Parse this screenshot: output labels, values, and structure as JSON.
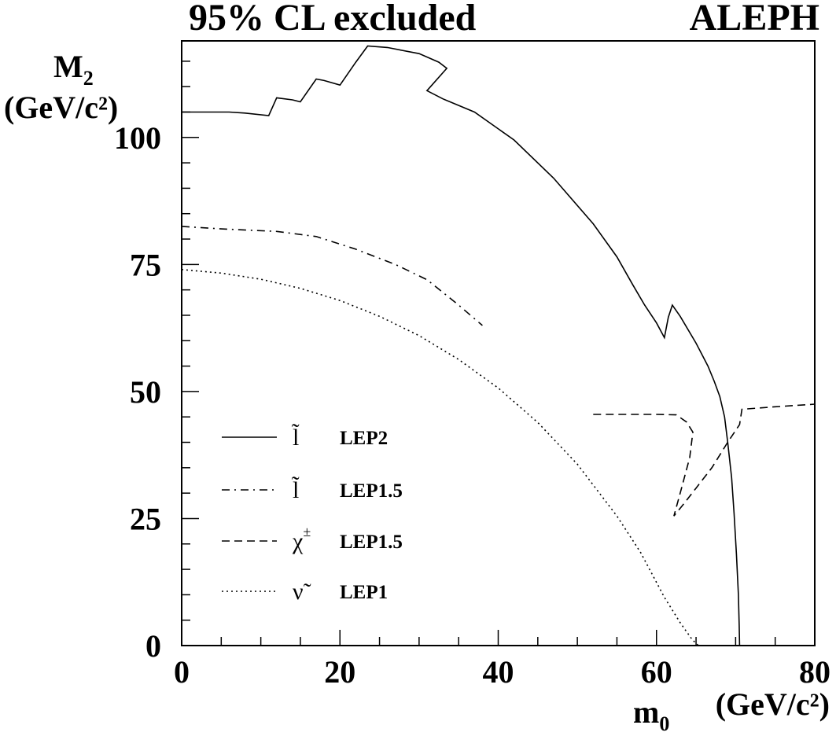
{
  "chart_data": {
    "type": "line",
    "title": "95% CL excluded",
    "experiment": "ALEPH",
    "ylabel": {
      "main": "M",
      "sub": "2",
      "unit": "(GeV/c²)"
    },
    "xlabel": {
      "main": "m",
      "sub": "0",
      "unit": "(GeV/c²)"
    },
    "xlim": [
      0,
      80
    ],
    "ylim": [
      0,
      119
    ],
    "xticks": [
      "0",
      "20",
      "40",
      "60",
      "80"
    ],
    "yticks": [
      "0",
      "25",
      "50",
      "75",
      "100"
    ],
    "grid": false,
    "legend_position": "bottom-left",
    "series": [
      {
        "symbol": "l̃",
        "sup": "",
        "name": "LEP2",
        "style": "solid",
        "points": [
          [
            0,
            105
          ],
          [
            3,
            105
          ],
          [
            6,
            105
          ],
          [
            8,
            104.8
          ],
          [
            11,
            104.3
          ],
          [
            12,
            107.8
          ],
          [
            14,
            107.4
          ],
          [
            15,
            107
          ],
          [
            17,
            111.5
          ],
          [
            18,
            111.2
          ],
          [
            20,
            110.3
          ],
          [
            22,
            114.8
          ],
          [
            23.5,
            118
          ],
          [
            26,
            117.7
          ],
          [
            30,
            116.5
          ],
          [
            32.5,
            114.8
          ],
          [
            33.5,
            113.6
          ],
          [
            31,
            109.2
          ],
          [
            33,
            107.6
          ],
          [
            37,
            105
          ],
          [
            42,
            99.5
          ],
          [
            47,
            92
          ],
          [
            52,
            83
          ],
          [
            55,
            76.5
          ],
          [
            57,
            71
          ],
          [
            58.5,
            67
          ],
          [
            60,
            63.5
          ],
          [
            61,
            60.6
          ],
          [
            61.5,
            64.6
          ],
          [
            62,
            67
          ],
          [
            63,
            64.8
          ],
          [
            65,
            59.5
          ],
          [
            66.5,
            55
          ],
          [
            67.3,
            52
          ],
          [
            68,
            49
          ],
          [
            68.6,
            45
          ],
          [
            69,
            40
          ],
          [
            69.5,
            33
          ],
          [
            69.8,
            26
          ],
          [
            70.1,
            18
          ],
          [
            70.35,
            10
          ],
          [
            70.45,
            4
          ],
          [
            70.5,
            0
          ]
        ]
      },
      {
        "symbol": "l̃",
        "sup": "",
        "name": "LEP1.5",
        "style": "dashdot",
        "points": [
          [
            0,
            82.5
          ],
          [
            5,
            82
          ],
          [
            12,
            81.5
          ],
          [
            17,
            80.5
          ],
          [
            22,
            78
          ],
          [
            27,
            75
          ],
          [
            31,
            72
          ],
          [
            35,
            67
          ],
          [
            38,
            63
          ]
        ]
      },
      {
        "symbol": "χ",
        "sup": "±",
        "name": "LEP1.5",
        "style": "dashed",
        "points": [
          [
            52,
            45.5
          ],
          [
            56,
            45.5
          ],
          [
            60,
            45.5
          ],
          [
            62.5,
            45.4
          ],
          [
            63.8,
            44
          ],
          [
            64.6,
            42
          ],
          [
            64.2,
            37
          ],
          [
            63,
            30
          ],
          [
            62.2,
            25.5
          ],
          [
            63.5,
            28
          ],
          [
            65,
            31
          ],
          [
            67,
            35
          ],
          [
            69,
            40
          ],
          [
            70.5,
            43.5
          ],
          [
            70.8,
            46.5
          ],
          [
            75,
            47
          ],
          [
            80,
            47.5
          ]
        ]
      },
      {
        "symbol": "ν̃",
        "sup": "",
        "name": "LEP1",
        "style": "dotted",
        "points": [
          [
            0,
            74
          ],
          [
            5,
            73.3
          ],
          [
            10,
            72.1
          ],
          [
            15,
            70.3
          ],
          [
            20,
            67.9
          ],
          [
            25,
            64.8
          ],
          [
            30,
            61
          ],
          [
            35,
            56.3
          ],
          [
            40,
            50.7
          ],
          [
            45,
            43.9
          ],
          [
            50,
            35.7
          ],
          [
            55,
            25.5
          ],
          [
            58,
            18.3
          ],
          [
            61,
            9.5
          ],
          [
            63,
            4.5
          ],
          [
            64.5,
            1.2
          ],
          [
            65.3,
            0
          ]
        ]
      }
    ]
  }
}
